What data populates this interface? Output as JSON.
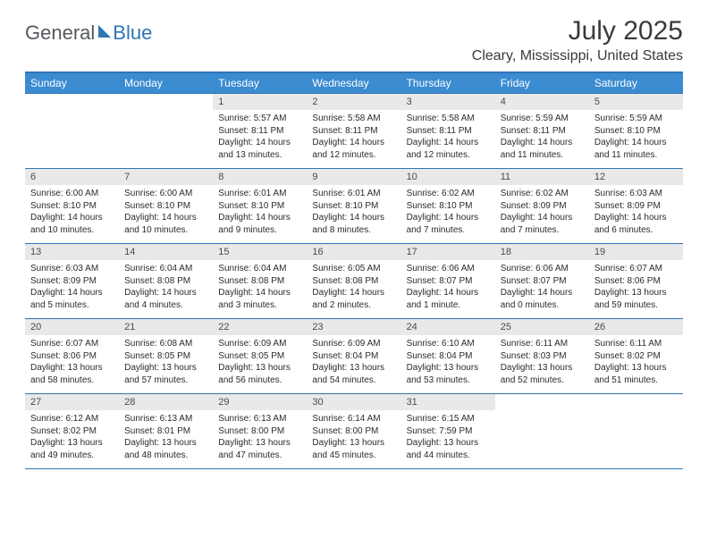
{
  "brand": {
    "part1": "General",
    "part2": "Blue"
  },
  "title": "July 2025",
  "location": "Cleary, Mississippi, United States",
  "colors": {
    "header_bg": "#3b8bd0",
    "accent": "#2f75b5",
    "daynum_bg": "#e9e9e9",
    "text": "#2b2b2b",
    "title_text": "#3a3a3a"
  },
  "fonts": {
    "base_family": "Arial",
    "title_size_pt": 30,
    "header_size_pt": 12,
    "body_size_pt": 10
  },
  "weekday_headers": [
    "Sunday",
    "Monday",
    "Tuesday",
    "Wednesday",
    "Thursday",
    "Friday",
    "Saturday"
  ],
  "weeks": [
    [
      {
        "empty": true
      },
      {
        "empty": true
      },
      {
        "num": "1",
        "sunrise": "Sunrise: 5:57 AM",
        "sunset": "Sunset: 8:11 PM",
        "daylight": "Daylight: 14 hours and 13 minutes."
      },
      {
        "num": "2",
        "sunrise": "Sunrise: 5:58 AM",
        "sunset": "Sunset: 8:11 PM",
        "daylight": "Daylight: 14 hours and 12 minutes."
      },
      {
        "num": "3",
        "sunrise": "Sunrise: 5:58 AM",
        "sunset": "Sunset: 8:11 PM",
        "daylight": "Daylight: 14 hours and 12 minutes."
      },
      {
        "num": "4",
        "sunrise": "Sunrise: 5:59 AM",
        "sunset": "Sunset: 8:11 PM",
        "daylight": "Daylight: 14 hours and 11 minutes."
      },
      {
        "num": "5",
        "sunrise": "Sunrise: 5:59 AM",
        "sunset": "Sunset: 8:10 PM",
        "daylight": "Daylight: 14 hours and 11 minutes."
      }
    ],
    [
      {
        "num": "6",
        "sunrise": "Sunrise: 6:00 AM",
        "sunset": "Sunset: 8:10 PM",
        "daylight": "Daylight: 14 hours and 10 minutes."
      },
      {
        "num": "7",
        "sunrise": "Sunrise: 6:00 AM",
        "sunset": "Sunset: 8:10 PM",
        "daylight": "Daylight: 14 hours and 10 minutes."
      },
      {
        "num": "8",
        "sunrise": "Sunrise: 6:01 AM",
        "sunset": "Sunset: 8:10 PM",
        "daylight": "Daylight: 14 hours and 9 minutes."
      },
      {
        "num": "9",
        "sunrise": "Sunrise: 6:01 AM",
        "sunset": "Sunset: 8:10 PM",
        "daylight": "Daylight: 14 hours and 8 minutes."
      },
      {
        "num": "10",
        "sunrise": "Sunrise: 6:02 AM",
        "sunset": "Sunset: 8:10 PM",
        "daylight": "Daylight: 14 hours and 7 minutes."
      },
      {
        "num": "11",
        "sunrise": "Sunrise: 6:02 AM",
        "sunset": "Sunset: 8:09 PM",
        "daylight": "Daylight: 14 hours and 7 minutes."
      },
      {
        "num": "12",
        "sunrise": "Sunrise: 6:03 AM",
        "sunset": "Sunset: 8:09 PM",
        "daylight": "Daylight: 14 hours and 6 minutes."
      }
    ],
    [
      {
        "num": "13",
        "sunrise": "Sunrise: 6:03 AM",
        "sunset": "Sunset: 8:09 PM",
        "daylight": "Daylight: 14 hours and 5 minutes."
      },
      {
        "num": "14",
        "sunrise": "Sunrise: 6:04 AM",
        "sunset": "Sunset: 8:08 PM",
        "daylight": "Daylight: 14 hours and 4 minutes."
      },
      {
        "num": "15",
        "sunrise": "Sunrise: 6:04 AM",
        "sunset": "Sunset: 8:08 PM",
        "daylight": "Daylight: 14 hours and 3 minutes."
      },
      {
        "num": "16",
        "sunrise": "Sunrise: 6:05 AM",
        "sunset": "Sunset: 8:08 PM",
        "daylight": "Daylight: 14 hours and 2 minutes."
      },
      {
        "num": "17",
        "sunrise": "Sunrise: 6:06 AM",
        "sunset": "Sunset: 8:07 PM",
        "daylight": "Daylight: 14 hours and 1 minute."
      },
      {
        "num": "18",
        "sunrise": "Sunrise: 6:06 AM",
        "sunset": "Sunset: 8:07 PM",
        "daylight": "Daylight: 14 hours and 0 minutes."
      },
      {
        "num": "19",
        "sunrise": "Sunrise: 6:07 AM",
        "sunset": "Sunset: 8:06 PM",
        "daylight": "Daylight: 13 hours and 59 minutes."
      }
    ],
    [
      {
        "num": "20",
        "sunrise": "Sunrise: 6:07 AM",
        "sunset": "Sunset: 8:06 PM",
        "daylight": "Daylight: 13 hours and 58 minutes."
      },
      {
        "num": "21",
        "sunrise": "Sunrise: 6:08 AM",
        "sunset": "Sunset: 8:05 PM",
        "daylight": "Daylight: 13 hours and 57 minutes."
      },
      {
        "num": "22",
        "sunrise": "Sunrise: 6:09 AM",
        "sunset": "Sunset: 8:05 PM",
        "daylight": "Daylight: 13 hours and 56 minutes."
      },
      {
        "num": "23",
        "sunrise": "Sunrise: 6:09 AM",
        "sunset": "Sunset: 8:04 PM",
        "daylight": "Daylight: 13 hours and 54 minutes."
      },
      {
        "num": "24",
        "sunrise": "Sunrise: 6:10 AM",
        "sunset": "Sunset: 8:04 PM",
        "daylight": "Daylight: 13 hours and 53 minutes."
      },
      {
        "num": "25",
        "sunrise": "Sunrise: 6:11 AM",
        "sunset": "Sunset: 8:03 PM",
        "daylight": "Daylight: 13 hours and 52 minutes."
      },
      {
        "num": "26",
        "sunrise": "Sunrise: 6:11 AM",
        "sunset": "Sunset: 8:02 PM",
        "daylight": "Daylight: 13 hours and 51 minutes."
      }
    ],
    [
      {
        "num": "27",
        "sunrise": "Sunrise: 6:12 AM",
        "sunset": "Sunset: 8:02 PM",
        "daylight": "Daylight: 13 hours and 49 minutes."
      },
      {
        "num": "28",
        "sunrise": "Sunrise: 6:13 AM",
        "sunset": "Sunset: 8:01 PM",
        "daylight": "Daylight: 13 hours and 48 minutes."
      },
      {
        "num": "29",
        "sunrise": "Sunrise: 6:13 AM",
        "sunset": "Sunset: 8:00 PM",
        "daylight": "Daylight: 13 hours and 47 minutes."
      },
      {
        "num": "30",
        "sunrise": "Sunrise: 6:14 AM",
        "sunset": "Sunset: 8:00 PM",
        "daylight": "Daylight: 13 hours and 45 minutes."
      },
      {
        "num": "31",
        "sunrise": "Sunrise: 6:15 AM",
        "sunset": "Sunset: 7:59 PM",
        "daylight": "Daylight: 13 hours and 44 minutes."
      },
      {
        "empty": true
      },
      {
        "empty": true
      }
    ]
  ]
}
